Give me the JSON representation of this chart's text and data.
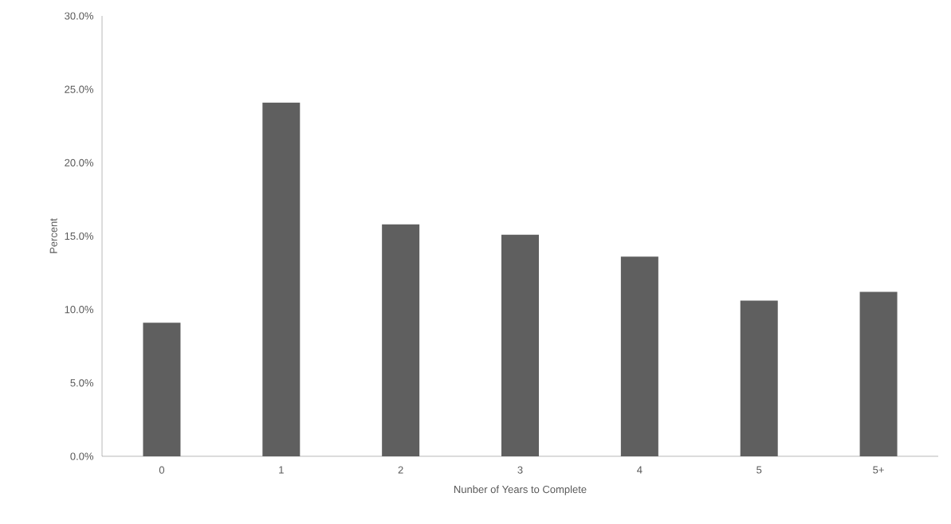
{
  "chart_data": {
    "type": "bar",
    "xlabel": "Nunber of Years to Complete",
    "ylabel": "Percent",
    "categories": [
      "0",
      "1",
      "2",
      "3",
      "4",
      "5",
      "5+"
    ],
    "values": [
      9.1,
      24.1,
      15.8,
      15.1,
      13.6,
      10.6,
      11.2
    ],
    "color": "#5f5f5f",
    "ylim": [
      0,
      30
    ],
    "yticks": [
      {
        "value": 0,
        "label": "0.0%"
      },
      {
        "value": 5,
        "label": "5.0%"
      },
      {
        "value": 10,
        "label": "10.0%"
      },
      {
        "value": 15,
        "label": "15.0%"
      },
      {
        "value": 20,
        "label": "20.0%"
      },
      {
        "value": 25,
        "label": "25.0%"
      },
      {
        "value": 30,
        "label": "30.0%"
      }
    ],
    "grid": false
  }
}
